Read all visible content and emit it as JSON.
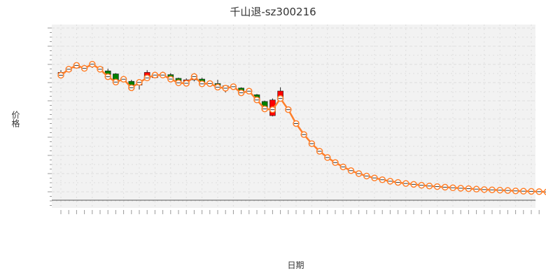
{
  "chart_data": {
    "type": "candlestick",
    "title": "千山退-sz300216",
    "xlabel": "日期",
    "ylabel": "价格",
    "grid": true,
    "legend": "none",
    "ylim": [
      0,
      1
    ],
    "colors": {
      "up": "#ff0000",
      "down": "#008000",
      "line": "#ff7f2a",
      "marker_fill": "#ffffff",
      "grid": "#dddddd",
      "plot_bg": "#f2f2f2",
      "baseline": "#555555"
    },
    "candles": [
      {
        "o": 0.8,
        "c": 0.815,
        "h": 0.83,
        "l": 0.795
      },
      {
        "o": 0.825,
        "c": 0.845,
        "h": 0.852,
        "l": 0.815
      },
      {
        "o": 0.845,
        "c": 0.86,
        "h": 0.87,
        "l": 0.84
      },
      {
        "o": 0.85,
        "c": 0.84,
        "h": 0.865,
        "l": 0.825
      },
      {
        "o": 0.855,
        "c": 0.87,
        "h": 0.88,
        "l": 0.845
      },
      {
        "o": 0.85,
        "c": 0.835,
        "h": 0.855,
        "l": 0.83
      },
      {
        "o": 0.825,
        "c": 0.8,
        "h": 0.84,
        "l": 0.79
      },
      {
        "o": 0.805,
        "c": 0.745,
        "h": 0.81,
        "l": 0.745
      },
      {
        "o": 0.76,
        "c": 0.77,
        "h": 0.78,
        "l": 0.75
      },
      {
        "o": 0.755,
        "c": 0.72,
        "h": 0.765,
        "l": 0.71
      },
      {
        "o": 0.73,
        "c": 0.75,
        "h": 0.765,
        "l": 0.7
      },
      {
        "o": 0.77,
        "c": 0.815,
        "h": 0.83,
        "l": 0.76
      },
      {
        "o": 0.78,
        "c": 0.8,
        "h": 0.815,
        "l": 0.775
      },
      {
        "o": 0.805,
        "c": 0.79,
        "h": 0.82,
        "l": 0.78
      },
      {
        "o": 0.8,
        "c": 0.78,
        "h": 0.81,
        "l": 0.775
      },
      {
        "o": 0.775,
        "c": 0.745,
        "h": 0.78,
        "l": 0.735
      },
      {
        "o": 0.745,
        "c": 0.765,
        "h": 0.775,
        "l": 0.735
      },
      {
        "o": 0.765,
        "c": 0.795,
        "h": 0.81,
        "l": 0.755
      },
      {
        "o": 0.77,
        "c": 0.74,
        "h": 0.78,
        "l": 0.73
      },
      {
        "o": 0.75,
        "c": 0.74,
        "h": 0.76,
        "l": 0.73
      },
      {
        "o": 0.74,
        "c": 0.715,
        "h": 0.765,
        "l": 0.705
      },
      {
        "o": 0.725,
        "c": 0.71,
        "h": 0.73,
        "l": 0.68
      },
      {
        "o": 0.715,
        "c": 0.725,
        "h": 0.735,
        "l": 0.705
      },
      {
        "o": 0.71,
        "c": 0.68,
        "h": 0.715,
        "l": 0.675
      },
      {
        "o": 0.69,
        "c": 0.69,
        "h": 0.7,
        "l": 0.675
      },
      {
        "o": 0.665,
        "c": 0.635,
        "h": 0.67,
        "l": 0.63
      },
      {
        "o": 0.62,
        "c": 0.56,
        "h": 0.625,
        "l": 0.555
      },
      {
        "o": 0.525,
        "c": 0.63,
        "h": 0.64,
        "l": 0.52
      },
      {
        "o": 0.63,
        "c": 0.69,
        "h": 0.715,
        "l": 0.62
      }
    ],
    "line_values": [
      0.796,
      0.836,
      0.862,
      0.842,
      0.87,
      0.836,
      0.786,
      0.75,
      0.769,
      0.712,
      0.748,
      0.778,
      0.797,
      0.797,
      0.77,
      0.745,
      0.742,
      0.787,
      0.738,
      0.74,
      0.716,
      0.709,
      0.719,
      0.678,
      0.689,
      0.63,
      0.57,
      0.565,
      0.64,
      0.565,
      0.472,
      0.398,
      0.337,
      0.286,
      0.244,
      0.21,
      0.181,
      0.156,
      0.136,
      0.12,
      0.107,
      0.095,
      0.085,
      0.077,
      0.07,
      0.064,
      0.058,
      0.053,
      0.049,
      0.045,
      0.041,
      0.038,
      0.035,
      0.032,
      0.029,
      0.027,
      0.025,
      0.023,
      0.02,
      0.018,
      0.017,
      0.015,
      0.013,
      0.012,
      0.011,
      0.01,
      0.009,
      0.008,
      0.007,
      0.007
    ]
  }
}
